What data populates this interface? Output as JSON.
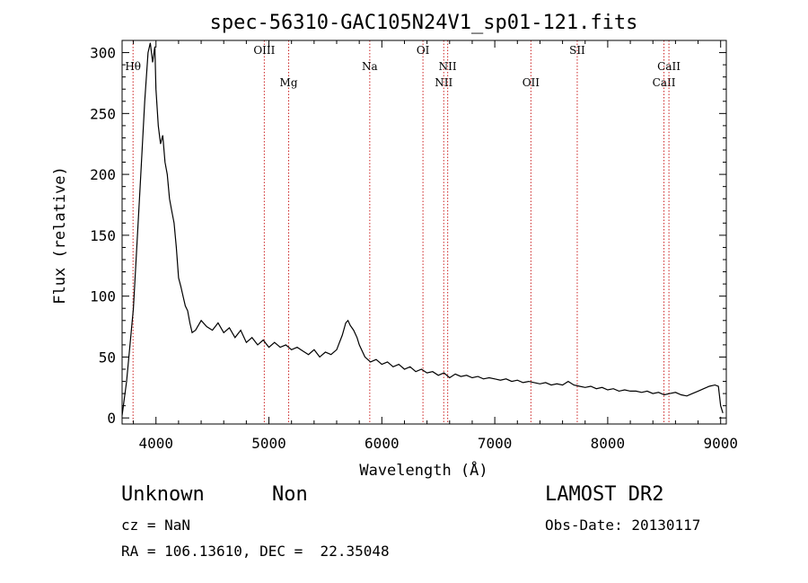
{
  "chart_data": {
    "type": "line",
    "title": "spec-56310-GAC105N24V1_sp01-121.fits",
    "xlabel": "Wavelength (Å)",
    "ylabel": "Flux (relative)",
    "xlim": [
      3700,
      9050
    ],
    "ylim": [
      -5,
      310
    ],
    "xticks": [
      4000,
      5000,
      6000,
      7000,
      8000,
      9000
    ],
    "yticks": [
      0,
      50,
      100,
      150,
      200,
      250,
      300
    ],
    "grid": false,
    "series": [
      {
        "x": [
          3700,
          3740,
          3800,
          3860,
          3900,
          3930,
          3950,
          3970,
          3990,
          4000,
          4020,
          4040,
          4060,
          4080,
          4100,
          4120,
          4140,
          4160,
          4180,
          4200,
          4220,
          4240,
          4260,
          4280,
          4300,
          4320,
          4350,
          4400,
          4450,
          4500,
          4550,
          4600,
          4650,
          4700,
          4750,
          4800,
          4850,
          4900,
          4950,
          5000,
          5050,
          5100,
          5150,
          5200,
          5250,
          5300,
          5350,
          5400,
          5450,
          5500,
          5550,
          5600,
          5650,
          5680,
          5700,
          5720,
          5750,
          5780,
          5800,
          5850,
          5900,
          5950,
          6000,
          6050,
          6100,
          6150,
          6200,
          6250,
          6300,
          6350,
          6400,
          6450,
          6500,
          6550,
          6600,
          6650,
          6700,
          6750,
          6800,
          6850,
          6900,
          6950,
          7000,
          7050,
          7100,
          7150,
          7200,
          7250,
          7300,
          7350,
          7400,
          7450,
          7500,
          7550,
          7600,
          7650,
          7700,
          7750,
          7800,
          7850,
          7900,
          7950,
          8000,
          8050,
          8100,
          8150,
          8200,
          8250,
          8300,
          8350,
          8400,
          8450,
          8500,
          8550,
          8600,
          8650,
          8700,
          8750,
          8800,
          8850,
          8900,
          8950,
          8980,
          9000,
          9020
        ],
        "y": [
          2,
          30,
          90,
          190,
          260,
          300,
          308,
          292,
          305,
          270,
          240,
          225,
          232,
          210,
          200,
          180,
          170,
          160,
          140,
          115,
          108,
          100,
          92,
          88,
          78,
          70,
          72,
          80,
          75,
          72,
          78,
          70,
          74,
          66,
          72,
          62,
          66,
          60,
          64,
          58,
          62,
          58,
          60,
          56,
          58,
          55,
          52,
          56,
          50,
          54,
          52,
          56,
          68,
          78,
          80,
          76,
          72,
          66,
          60,
          50,
          46,
          48,
          44,
          46,
          42,
          44,
          40,
          42,
          38,
          40,
          37,
          38,
          35,
          37,
          33,
          36,
          34,
          35,
          33,
          34,
          32,
          33,
          32,
          31,
          32,
          30,
          31,
          29,
          30,
          29,
          28,
          29,
          27,
          28,
          27,
          30,
          27,
          26,
          25,
          26,
          24,
          25,
          23,
          24,
          22,
          23,
          22,
          22,
          21,
          22,
          20,
          21,
          19,
          20,
          21,
          19,
          18,
          20,
          22,
          24,
          26,
          27,
          26,
          10,
          4
        ]
      }
    ],
    "reference_lines": [
      {
        "label": "Hθ",
        "x": 3797,
        "row": 1
      },
      {
        "label": "OIII",
        "x": 4959,
        "row": 0
      },
      {
        "label": "Mg",
        "x": 5175,
        "row": 2
      },
      {
        "label": "Na",
        "x": 5893,
        "row": 1
      },
      {
        "label": "OI",
        "x": 6364,
        "row": 0
      },
      {
        "label": "NII",
        "x": 6548,
        "row": 2
      },
      {
        "label": "NII",
        "x": 6583,
        "row": 1
      },
      {
        "label": "OII",
        "x": 7320,
        "row": 2
      },
      {
        "label": "SII",
        "x": 7730,
        "row": 0
      },
      {
        "label": "CaII",
        "x": 8498,
        "row": 2
      },
      {
        "label": "CaII",
        "x": 8542,
        "row": 1
      }
    ]
  },
  "info": {
    "class": "Unknown",
    "subclass": "Non",
    "survey": "LAMOST DR2",
    "cz": "cz = NaN",
    "obs_date": "Obs-Date: 20130117",
    "coords": "RA = 106.13610, DEC =  22.35048"
  }
}
